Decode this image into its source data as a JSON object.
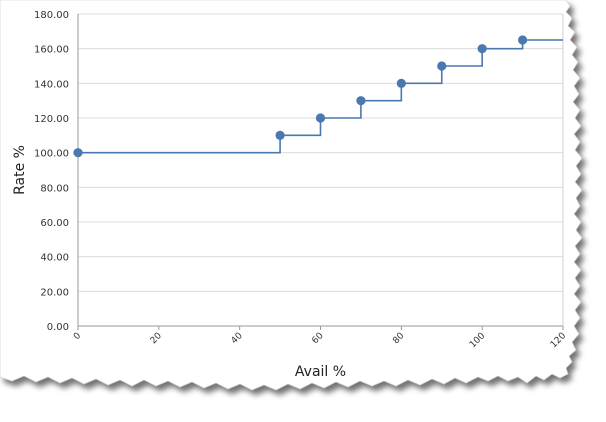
{
  "chart_data": {
    "type": "line",
    "step": true,
    "title": "",
    "xlabel": "Avail %",
    "ylabel": "Rate  %",
    "xlim": [
      0,
      120
    ],
    "ylim": [
      0,
      180
    ],
    "x_ticks": [
      0,
      20,
      40,
      60,
      80,
      100,
      120
    ],
    "y_ticks": [
      0,
      20,
      40,
      60,
      80,
      100,
      120,
      140,
      160,
      180
    ],
    "y_tick_labels": [
      "0.00",
      "20.00",
      "40.00",
      "60.00",
      "80.00",
      "100.00",
      "120.00",
      "140.00",
      "160.00",
      "180.00"
    ],
    "grid": "horizontal",
    "legend": "none",
    "series": [
      {
        "color": "#4a78b0",
        "x": [
          0,
          50,
          60,
          70,
          80,
          90,
          100,
          110
        ],
        "y": [
          100,
          110,
          120,
          130,
          140,
          150,
          160,
          165
        ],
        "extend_to_x": 120
      }
    ]
  }
}
